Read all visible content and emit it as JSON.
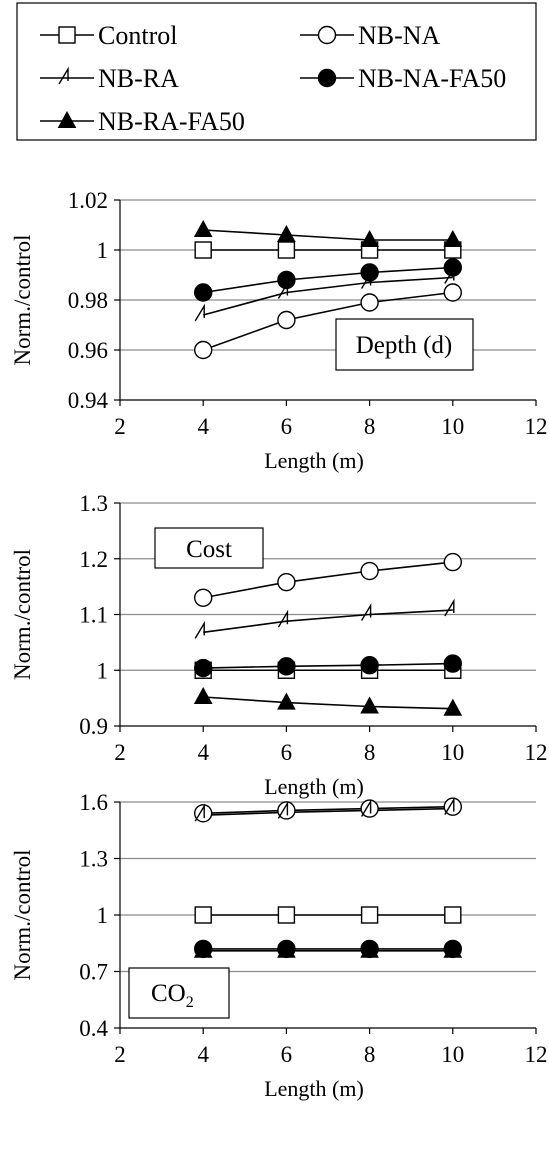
{
  "legend": {
    "placement": "top",
    "entries": [
      {
        "label": "Control",
        "marker": "square-open"
      },
      {
        "label": "NB-NA",
        "marker": "circle-open"
      },
      {
        "label": "NB-RA",
        "marker": "half-triangle"
      },
      {
        "label": "NB-NA-FA50",
        "marker": "circle-filled"
      },
      {
        "label": "NB-RA-FA50",
        "marker": "triangle-filled"
      }
    ]
  },
  "chart_data": [
    {
      "type": "line",
      "panel": "depth",
      "annotation": "Depth (d)",
      "xlabel": "Length (m)",
      "ylabel": "Norm./control",
      "xlim": [
        2,
        12
      ],
      "ylim": [
        0.94,
        1.02
      ],
      "x_ticks": [
        "2",
        "4",
        "6",
        "8",
        "10",
        "12"
      ],
      "y_ticks": [
        "0.94",
        "0.96",
        "0.98",
        "1",
        "1.02"
      ],
      "y_tick_values": [
        0.94,
        0.96,
        0.98,
        1.0,
        1.02
      ],
      "grid": true,
      "x": [
        4,
        6,
        8,
        10
      ],
      "series": [
        {
          "name": "Control",
          "values": [
            1.0,
            1.0,
            1.0,
            1.0
          ]
        },
        {
          "name": "NB-NA",
          "values": [
            0.96,
            0.972,
            0.979,
            0.983
          ]
        },
        {
          "name": "NB-RA",
          "values": [
            0.974,
            0.983,
            0.987,
            0.989
          ]
        },
        {
          "name": "NB-NA-FA50",
          "values": [
            0.983,
            0.988,
            0.991,
            0.993
          ]
        },
        {
          "name": "NB-RA-FA50",
          "values": [
            1.008,
            1.006,
            1.004,
            1.004
          ]
        }
      ]
    },
    {
      "type": "line",
      "panel": "cost",
      "annotation": "Cost",
      "xlabel": "Length (m)",
      "ylabel": "Norm./control",
      "xlim": [
        2,
        12
      ],
      "ylim": [
        0.9,
        1.3
      ],
      "x_ticks": [
        "2",
        "4",
        "6",
        "8",
        "10",
        "12"
      ],
      "y_ticks": [
        "0.9",
        "1",
        "1.1",
        "1.2",
        "1.3"
      ],
      "y_tick_values": [
        0.9,
        1.0,
        1.1,
        1.2,
        1.3
      ],
      "grid": true,
      "x": [
        4,
        6,
        8,
        10
      ],
      "series": [
        {
          "name": "Control",
          "values": [
            1.0,
            1.0,
            1.0,
            1.0
          ]
        },
        {
          "name": "NB-NA",
          "values": [
            1.13,
            1.158,
            1.178,
            1.194
          ]
        },
        {
          "name": "NB-RA",
          "values": [
            1.068,
            1.088,
            1.1,
            1.108
          ]
        },
        {
          "name": "NB-NA-FA50",
          "values": [
            1.004,
            1.007,
            1.009,
            1.012
          ]
        },
        {
          "name": "NB-RA-FA50",
          "values": [
            0.952,
            0.942,
            0.935,
            0.931
          ]
        }
      ]
    },
    {
      "type": "line",
      "panel": "co2",
      "annotation_main": "CO",
      "annotation_sub": "2",
      "xlabel": "Length (m)",
      "ylabel": "Norm./control",
      "xlim": [
        2,
        12
      ],
      "ylim": [
        0.4,
        1.6
      ],
      "x_ticks": [
        "2",
        "4",
        "6",
        "8",
        "10",
        "12"
      ],
      "y_ticks": [
        "0.4",
        "0.7",
        "1",
        "1.3",
        "1.6"
      ],
      "y_tick_values": [
        0.4,
        0.7,
        1.0,
        1.3,
        1.6
      ],
      "grid": true,
      "x": [
        4,
        6,
        8,
        10
      ],
      "series": [
        {
          "name": "Control",
          "values": [
            1.0,
            1.0,
            1.0,
            1.0
          ]
        },
        {
          "name": "NB-NA",
          "values": [
            1.54,
            1.555,
            1.565,
            1.575
          ]
        },
        {
          "name": "NB-RA",
          "values": [
            1.53,
            1.545,
            1.555,
            1.565
          ]
        },
        {
          "name": "NB-NA-FA50",
          "values": [
            0.82,
            0.82,
            0.82,
            0.82
          ]
        },
        {
          "name": "NB-RA-FA50",
          "values": [
            0.81,
            0.81,
            0.81,
            0.81
          ]
        }
      ]
    }
  ]
}
